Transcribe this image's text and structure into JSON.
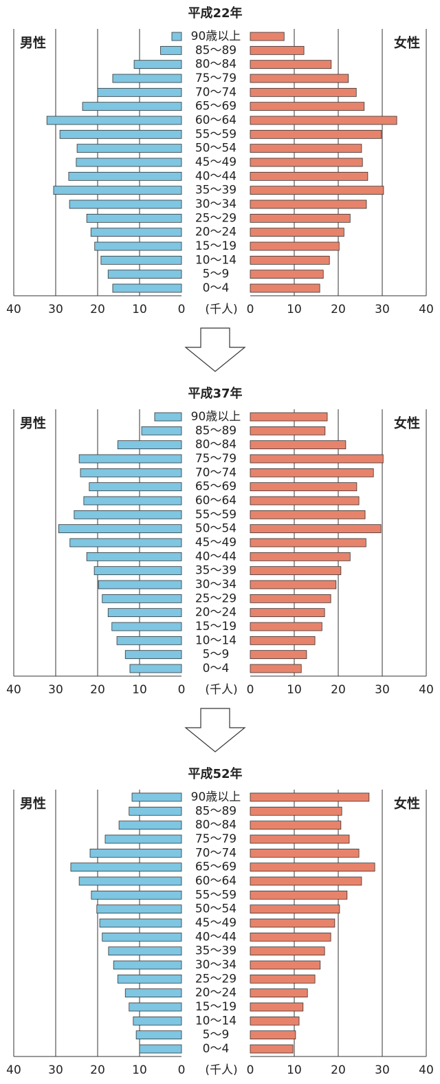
{
  "chart_data": [
    {
      "type": "pyramid",
      "title": "平成22年",
      "x_label": "(千人)",
      "categories": [
        "90歳以上",
        "85～89",
        "80～84",
        "75～79",
        "70～74",
        "65～69",
        "60～64",
        "55～59",
        "50～54",
        "45～49",
        "40～44",
        "35～39",
        "30～34",
        "25～29",
        "20～24",
        "15～19",
        "10～14",
        "5～9",
        "0～4"
      ],
      "series": [
        {
          "name": "男性",
          "color": "#7ec6e2",
          "values": [
            2.3,
            5,
            11.3,
            16.4,
            20,
            23.6,
            32.1,
            29,
            24.9,
            25.1,
            26.9,
            30.5,
            26.7,
            22.6,
            21.6,
            20.7,
            19.2,
            17.5,
            16.4
          ]
        },
        {
          "name": "女性",
          "color": "#e8836b",
          "values": [
            7.7,
            12.2,
            18.4,
            22.3,
            24.1,
            25.9,
            33.3,
            29.8,
            25.3,
            25.5,
            26.7,
            30.3,
            26.4,
            22.7,
            21.3,
            20.2,
            18,
            16.6,
            15.8
          ]
        }
      ],
      "xlim": [
        0,
        40
      ],
      "xticks": [
        0,
        10,
        20,
        30,
        40
      ]
    },
    {
      "type": "pyramid",
      "title": "平成37年",
      "x_label": "(千人)",
      "categories": [
        "90歳以上",
        "85～89",
        "80～84",
        "75～79",
        "70～74",
        "65～69",
        "60～64",
        "55～59",
        "50～54",
        "45～49",
        "40～44",
        "35～39",
        "30～34",
        "25～29",
        "20～24",
        "15～19",
        "10～14",
        "5～9",
        "0～4"
      ],
      "series": [
        {
          "name": "男性",
          "color": "#7ec6e2",
          "values": [
            6.4,
            9.5,
            15.2,
            24.4,
            24.1,
            22,
            23.3,
            25.6,
            29.3,
            26.6,
            22.6,
            20.8,
            19.8,
            18.9,
            17.5,
            16.6,
            15.4,
            13.4,
            12.3
          ]
        },
        {
          "name": "女性",
          "color": "#e8836b",
          "values": [
            17.5,
            17,
            21.7,
            30.2,
            28,
            24.2,
            24.7,
            26.1,
            29.7,
            26.3,
            22.7,
            20.6,
            19.5,
            18.3,
            16.9,
            16.3,
            14.7,
            12.8,
            11.6
          ]
        }
      ],
      "xlim": [
        0,
        40
      ],
      "xticks": [
        0,
        10,
        20,
        30,
        40
      ]
    },
    {
      "type": "pyramid",
      "title": "平成52年",
      "x_label": "(千人)",
      "categories": [
        "90歳以上",
        "85～89",
        "80～84",
        "75～79",
        "70～74",
        "65～69",
        "60～64",
        "55～59",
        "50～54",
        "45～49",
        "40～44",
        "35～39",
        "30～34",
        "25～29",
        "20～24",
        "15～19",
        "10～14",
        "5～9",
        "0～4"
      ],
      "series": [
        {
          "name": "男性",
          "color": "#7ec6e2",
          "values": [
            11.8,
            12.5,
            14.9,
            18.2,
            21.8,
            26.4,
            24.4,
            21.5,
            20.2,
            19.5,
            18.9,
            17.4,
            16.2,
            15.2,
            13.4,
            12.5,
            11.5,
            10.8,
            10
          ]
        },
        {
          "name": "女性",
          "color": "#e8836b",
          "values": [
            27,
            20.8,
            20.6,
            22.5,
            24.7,
            28.3,
            25.3,
            22,
            20.3,
            19.2,
            18.3,
            16.9,
            15.9,
            14.7,
            13,
            12,
            11.1,
            10.3,
            9.7
          ]
        }
      ],
      "xlim": [
        0,
        40
      ],
      "xticks": [
        0,
        10,
        20,
        30,
        40
      ]
    }
  ]
}
